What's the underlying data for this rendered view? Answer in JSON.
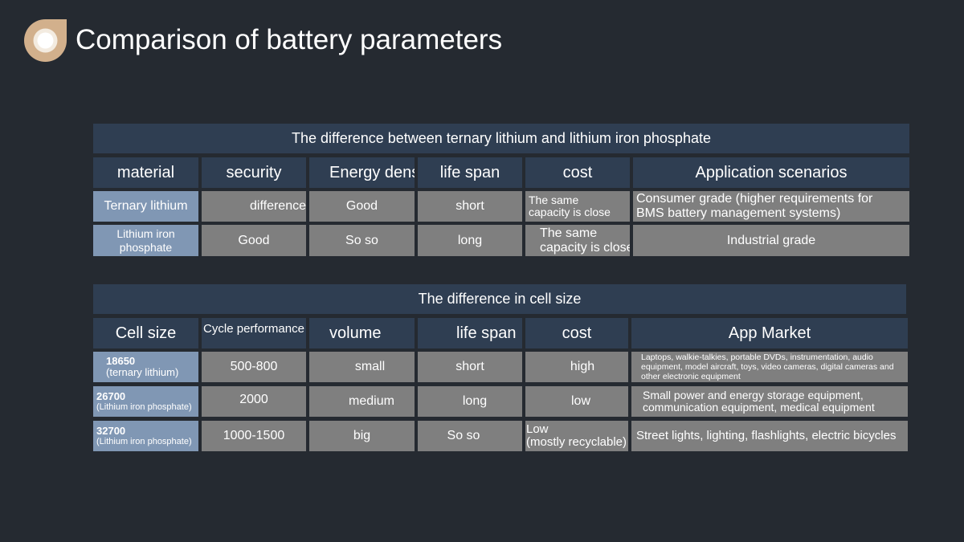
{
  "title": "Comparison of battery parameters",
  "colors": {
    "background": "#252a31",
    "header": "#2f3e52",
    "label": "#8097b4",
    "cell": "#7f7f7f",
    "logo_outer": "#d2b08c"
  },
  "icons": {
    "logo": "circle-badge-icon"
  },
  "table1": {
    "banner": "The difference between ternary lithium and lithium iron phosphate",
    "headers": [
      "material",
      "security",
      "Energy densi",
      "life span",
      "cost",
      "Application scenarios"
    ],
    "rows": [
      {
        "label": "Ternary lithium",
        "security": "difference",
        "energy": "Good",
        "life": "short",
        "cost_line1": "The same",
        "cost_line2": "capacity is close",
        "app_line1": "Consumer grade (higher requirements for",
        "app_line2": "BMS battery management systems)"
      },
      {
        "label_line1": "Lithium iron",
        "label_line2": "phosphate",
        "security": "Good",
        "energy": "So so",
        "life": "long",
        "cost_line1": "The same",
        "cost_line2": "capacity is close",
        "app": "Industrial grade"
      }
    ]
  },
  "table2": {
    "banner": "The difference in cell size",
    "headers": [
      "Cell size",
      "Cycle performance",
      "volume",
      "life span",
      "cost",
      "App Market"
    ],
    "rows": [
      {
        "size": "18650",
        "type": "(ternary lithium)",
        "cycle": "500-800",
        "volume": "small",
        "life": "short",
        "cost": "high",
        "market": "Laptops, walkie-talkies, portable DVDs, instrumentation, audio equipment, model aircraft, toys, video cameras, digital cameras and other electronic equipment"
      },
      {
        "size": "26700",
        "type": "(Lithium iron phosphate)",
        "cycle": "2000",
        "volume": "medium",
        "life": "long",
        "cost": "low",
        "market_line1": "Small power and energy storage equipment,",
        "market_line2": "communication equipment, medical equipment"
      },
      {
        "size": "32700",
        "type": "(Lithium iron phosphate)",
        "cycle": "1000-1500",
        "volume": "big",
        "life": "So so",
        "cost_line1": "Low",
        "cost_line2": "(mostly recyclable)",
        "market": "Street lights, lighting, flashlights, electric bicycles"
      }
    ]
  }
}
